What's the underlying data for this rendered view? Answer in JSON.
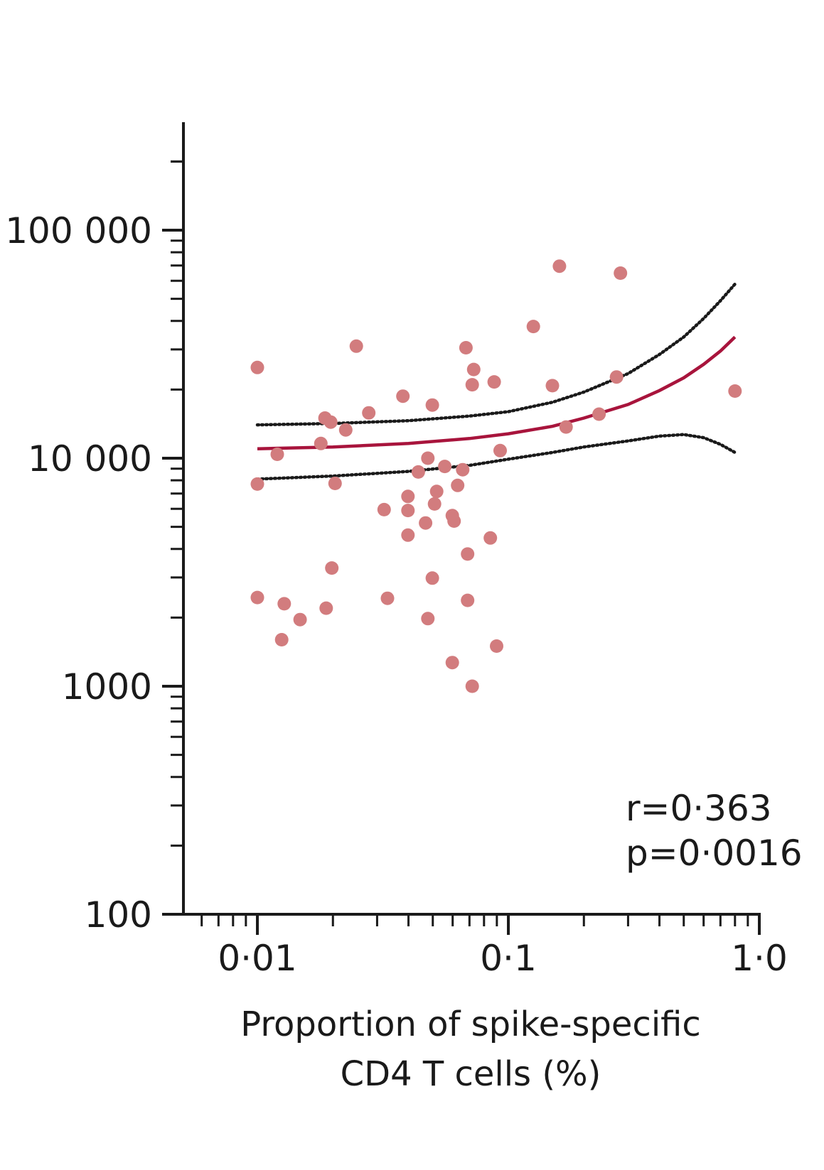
{
  "chart_data": {
    "type": "scatter",
    "title": "",
    "xlabel_lines": [
      "Proportion of spike-specific",
      "CD4 T cells (%)"
    ],
    "ylabel": "",
    "x_scale": "log",
    "y_scale": "log",
    "xlim": [
      0.005,
      1.0
    ],
    "ylim": [
      100,
      250000
    ],
    "x_ticks": [
      {
        "value": 0.01,
        "label": "0·01"
      },
      {
        "value": 0.1,
        "label": "0·1"
      },
      {
        "value": 1.0,
        "label": "1·0"
      }
    ],
    "y_ticks": [
      {
        "value": 100,
        "label": "100"
      },
      {
        "value": 1000,
        "label": "1000"
      },
      {
        "value": 10000,
        "label": "10 000"
      },
      {
        "value": 100000,
        "label": "100 000"
      }
    ],
    "grid": false,
    "legend": "none",
    "points": [
      {
        "x": 0.01,
        "y": 25000
      },
      {
        "x": 0.01,
        "y": 7700
      },
      {
        "x": 0.01,
        "y": 2450
      },
      {
        "x": 0.012,
        "y": 10400
      },
      {
        "x": 0.0125,
        "y": 1600
      },
      {
        "x": 0.0128,
        "y": 2300
      },
      {
        "x": 0.0148,
        "y": 1960
      },
      {
        "x": 0.0179,
        "y": 11600
      },
      {
        "x": 0.0186,
        "y": 15000
      },
      {
        "x": 0.0196,
        "y": 14400
      },
      {
        "x": 0.0188,
        "y": 2200
      },
      {
        "x": 0.0198,
        "y": 3300
      },
      {
        "x": 0.0204,
        "y": 7750
      },
      {
        "x": 0.0225,
        "y": 13300
      },
      {
        "x": 0.0248,
        "y": 31000
      },
      {
        "x": 0.0278,
        "y": 15800
      },
      {
        "x": 0.032,
        "y": 5950
      },
      {
        "x": 0.033,
        "y": 2430
      },
      {
        "x": 0.038,
        "y": 18700
      },
      {
        "x": 0.0398,
        "y": 6800
      },
      {
        "x": 0.0398,
        "y": 5900
      },
      {
        "x": 0.0398,
        "y": 4600
      },
      {
        "x": 0.0438,
        "y": 8700
      },
      {
        "x": 0.0468,
        "y": 5200
      },
      {
        "x": 0.0478,
        "y": 10000
      },
      {
        "x": 0.0478,
        "y": 1980
      },
      {
        "x": 0.0498,
        "y": 17100
      },
      {
        "x": 0.0498,
        "y": 2980
      },
      {
        "x": 0.0508,
        "y": 6300
      },
      {
        "x": 0.0518,
        "y": 7150
      },
      {
        "x": 0.0558,
        "y": 9200
      },
      {
        "x": 0.0598,
        "y": 5600
      },
      {
        "x": 0.0608,
        "y": 5300
      },
      {
        "x": 0.0598,
        "y": 1270
      },
      {
        "x": 0.0628,
        "y": 7600
      },
      {
        "x": 0.0658,
        "y": 8900
      },
      {
        "x": 0.0678,
        "y": 30500
      },
      {
        "x": 0.0688,
        "y": 3800
      },
      {
        "x": 0.0688,
        "y": 2380
      },
      {
        "x": 0.0728,
        "y": 24500
      },
      {
        "x": 0.0718,
        "y": 21000
      },
      {
        "x": 0.0718,
        "y": 1000
      },
      {
        "x": 0.0848,
        "y": 4470
      },
      {
        "x": 0.0878,
        "y": 21600
      },
      {
        "x": 0.0898,
        "y": 1500
      },
      {
        "x": 0.0928,
        "y": 10800
      },
      {
        "x": 0.1258,
        "y": 37800
      },
      {
        "x": 0.1498,
        "y": 20800
      },
      {
        "x": 0.1598,
        "y": 69500
      },
      {
        "x": 0.1698,
        "y": 13700
      },
      {
        "x": 0.2298,
        "y": 15600
      },
      {
        "x": 0.2698,
        "y": 22700
      },
      {
        "x": 0.2798,
        "y": 64800
      },
      {
        "x": 0.7998,
        "y": 19700
      }
    ],
    "fit": [
      {
        "x": 0.01,
        "y": 11000
      },
      {
        "x": 0.02,
        "y": 11200
      },
      {
        "x": 0.04,
        "y": 11600
      },
      {
        "x": 0.07,
        "y": 12200
      },
      {
        "x": 0.1,
        "y": 12800
      },
      {
        "x": 0.15,
        "y": 13800
      },
      {
        "x": 0.2,
        "y": 15000
      },
      {
        "x": 0.3,
        "y": 17200
      },
      {
        "x": 0.4,
        "y": 19800
      },
      {
        "x": 0.5,
        "y": 22500
      },
      {
        "x": 0.6,
        "y": 25800
      },
      {
        "x": 0.7,
        "y": 29500
      },
      {
        "x": 0.8,
        "y": 34000
      }
    ],
    "ci_upper": [
      {
        "x": 0.01,
        "y": 14000
      },
      {
        "x": 0.02,
        "y": 14200
      },
      {
        "x": 0.04,
        "y": 14600
      },
      {
        "x": 0.07,
        "y": 15300
      },
      {
        "x": 0.1,
        "y": 16000
      },
      {
        "x": 0.15,
        "y": 17600
      },
      {
        "x": 0.2,
        "y": 19500
      },
      {
        "x": 0.3,
        "y": 23500
      },
      {
        "x": 0.4,
        "y": 28500
      },
      {
        "x": 0.5,
        "y": 34000
      },
      {
        "x": 0.6,
        "y": 41000
      },
      {
        "x": 0.7,
        "y": 49000
      },
      {
        "x": 0.8,
        "y": 58000
      }
    ],
    "ci_lower": [
      {
        "x": 0.01,
        "y": 8100
      },
      {
        "x": 0.02,
        "y": 8350
      },
      {
        "x": 0.04,
        "y": 8750
      },
      {
        "x": 0.07,
        "y": 9300
      },
      {
        "x": 0.1,
        "y": 9900
      },
      {
        "x": 0.15,
        "y": 10600
      },
      {
        "x": 0.2,
        "y": 11200
      },
      {
        "x": 0.3,
        "y": 11900
      },
      {
        "x": 0.4,
        "y": 12500
      },
      {
        "x": 0.5,
        "y": 12700
      },
      {
        "x": 0.6,
        "y": 12300
      },
      {
        "x": 0.7,
        "y": 11500
      },
      {
        "x": 0.8,
        "y": 10600
      }
    ],
    "annotations": {
      "r": "r=0·363",
      "p": "p=0·0016"
    },
    "colors": {
      "points": "#d27c7e",
      "fit_line": "#a8143c",
      "ci_line": "#1a1a1a",
      "axis": "#1a1a1a"
    }
  }
}
